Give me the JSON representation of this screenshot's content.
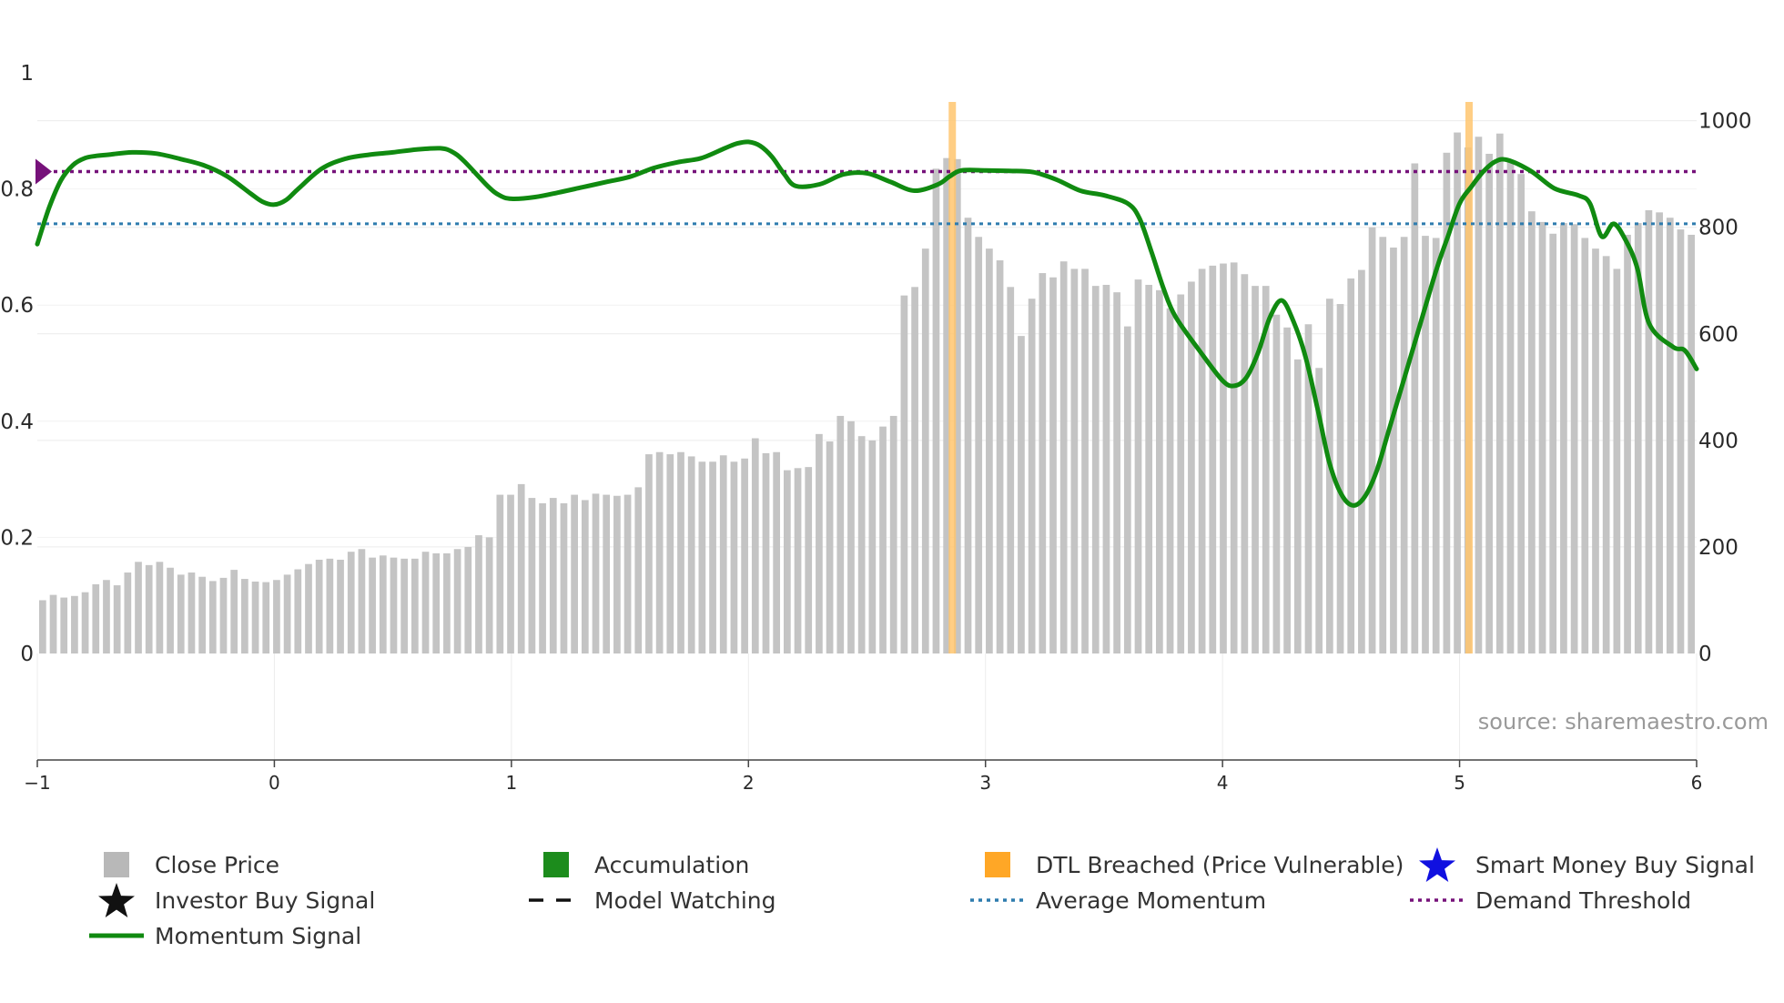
{
  "chart_data": {
    "type": "bar",
    "title": "",
    "source": "source: sharemaestro.com",
    "x_axis": {
      "range": [
        -1,
        6
      ],
      "ticks": [
        "−1",
        "0",
        "1",
        "2",
        "3",
        "4",
        "5",
        "6"
      ]
    },
    "y_left": {
      "range": [
        0,
        1
      ],
      "ticks": [
        "0",
        "0.2",
        "0.4",
        "0.6",
        "0.8",
        "1"
      ]
    },
    "y_right": {
      "range": [
        0,
        1090
      ],
      "ticks": [
        "0",
        "200",
        "400",
        "600",
        "800",
        "1000"
      ]
    },
    "close_price": [
      100,
      110,
      105,
      108,
      115,
      130,
      138,
      128,
      152,
      172,
      166,
      172,
      161,
      148,
      152,
      144,
      136,
      142,
      157,
      140,
      135,
      134,
      138,
      148,
      158,
      168,
      176,
      178,
      176,
      191,
      196,
      180,
      184,
      180,
      178,
      178,
      191,
      188,
      188,
      196,
      200,
      222,
      218,
      298,
      298,
      318,
      292,
      282,
      292,
      282,
      298,
      288,
      300,
      298,
      296,
      298,
      312,
      374,
      378,
      374,
      378,
      370,
      360,
      360,
      372,
      360,
      366,
      404,
      376,
      378,
      344,
      348,
      350,
      412,
      398,
      446,
      436,
      408,
      400,
      426,
      446,
      672,
      688,
      760,
      910,
      930,
      928,
      818,
      782,
      760,
      738,
      688,
      596,
      666,
      714,
      706,
      736,
      722,
      722,
      690,
      692,
      678,
      614,
      702,
      692,
      682,
      648,
      674,
      698,
      722,
      728,
      732,
      734,
      712,
      690,
      690,
      636,
      612,
      552,
      618,
      536,
      666,
      656,
      704,
      720,
      800,
      782,
      762,
      782,
      920,
      784,
      780,
      940,
      978,
      950,
      970,
      938,
      976,
      926,
      900,
      830,
      810,
      788,
      808,
      806,
      780,
      760,
      746,
      722,
      786,
      808,
      832,
      828,
      818,
      796,
      786
    ],
    "momentum_signal": [
      [
        -1.0,
        0.705
      ],
      [
        -0.95,
        0.768
      ],
      [
        -0.9,
        0.815
      ],
      [
        -0.85,
        0.841
      ],
      [
        -0.8,
        0.853
      ],
      [
        -0.75,
        0.857
      ],
      [
        -0.7,
        0.859
      ],
      [
        -0.6,
        0.863
      ],
      [
        -0.5,
        0.861
      ],
      [
        -0.4,
        0.852
      ],
      [
        -0.3,
        0.841
      ],
      [
        -0.2,
        0.822
      ],
      [
        -0.1,
        0.792
      ],
      [
        -0.05,
        0.778
      ],
      [
        0.0,
        0.773
      ],
      [
        0.05,
        0.781
      ],
      [
        0.1,
        0.8
      ],
      [
        0.2,
        0.835
      ],
      [
        0.3,
        0.852
      ],
      [
        0.4,
        0.859
      ],
      [
        0.5,
        0.863
      ],
      [
        0.6,
        0.868
      ],
      [
        0.7,
        0.87
      ],
      [
        0.75,
        0.864
      ],
      [
        0.8,
        0.848
      ],
      [
        0.9,
        0.805
      ],
      [
        0.95,
        0.789
      ],
      [
        1.0,
        0.783
      ],
      [
        1.1,
        0.786
      ],
      [
        1.2,
        0.794
      ],
      [
        1.3,
        0.803
      ],
      [
        1.4,
        0.812
      ],
      [
        1.5,
        0.821
      ],
      [
        1.6,
        0.836
      ],
      [
        1.7,
        0.846
      ],
      [
        1.8,
        0.853
      ],
      [
        1.9,
        0.87
      ],
      [
        1.95,
        0.878
      ],
      [
        2.0,
        0.881
      ],
      [
        2.05,
        0.874
      ],
      [
        2.1,
        0.855
      ],
      [
        2.15,
        0.826
      ],
      [
        2.2,
        0.805
      ],
      [
        2.3,
        0.808
      ],
      [
        2.4,
        0.825
      ],
      [
        2.5,
        0.827
      ],
      [
        2.6,
        0.812
      ],
      [
        2.7,
        0.797
      ],
      [
        2.8,
        0.808
      ],
      [
        2.85,
        0.822
      ],
      [
        2.9,
        0.832
      ],
      [
        3.0,
        0.832
      ],
      [
        3.1,
        0.831
      ],
      [
        3.2,
        0.829
      ],
      [
        3.3,
        0.816
      ],
      [
        3.4,
        0.797
      ],
      [
        3.5,
        0.789
      ],
      [
        3.6,
        0.775
      ],
      [
        3.65,
        0.749
      ],
      [
        3.7,
        0.692
      ],
      [
        3.75,
        0.63
      ],
      [
        3.8,
        0.581
      ],
      [
        3.9,
        0.523
      ],
      [
        4.0,
        0.47
      ],
      [
        4.05,
        0.461
      ],
      [
        4.1,
        0.475
      ],
      [
        4.15,
        0.518
      ],
      [
        4.2,
        0.579
      ],
      [
        4.25,
        0.608
      ],
      [
        4.3,
        0.571
      ],
      [
        4.35,
        0.511
      ],
      [
        4.4,
        0.423
      ],
      [
        4.45,
        0.33
      ],
      [
        4.5,
        0.275
      ],
      [
        4.55,
        0.255
      ],
      [
        4.6,
        0.27
      ],
      [
        4.65,
        0.314
      ],
      [
        4.7,
        0.382
      ],
      [
        4.8,
        0.52
      ],
      [
        4.9,
        0.658
      ],
      [
        4.95,
        0.717
      ],
      [
        5.0,
        0.775
      ],
      [
        5.05,
        0.804
      ],
      [
        5.1,
        0.83
      ],
      [
        5.15,
        0.847
      ],
      [
        5.2,
        0.85
      ],
      [
        5.3,
        0.831
      ],
      [
        5.4,
        0.801
      ],
      [
        5.5,
        0.789
      ],
      [
        5.55,
        0.775
      ],
      [
        5.6,
        0.718
      ],
      [
        5.65,
        0.74
      ],
      [
        5.7,
        0.712
      ],
      [
        5.75,
        0.663
      ],
      [
        5.8,
        0.568
      ],
      [
        5.9,
        0.528
      ],
      [
        5.95,
        0.522
      ],
      [
        6.0,
        0.49
      ]
    ],
    "average_momentum": 0.74,
    "demand_threshold": 0.83,
    "dtl_breached": [
      2.86,
      5.04
    ],
    "legend": [
      {
        "key": "close",
        "label": "Close Price",
        "color": "#b8b8b8"
      },
      {
        "key": "accum",
        "label": "Accumulation",
        "color": "#1c8c1c"
      },
      {
        "key": "dtl",
        "label": "DTL Breached (Price Vulnerable)",
        "color": "#ffa726"
      },
      {
        "key": "smart",
        "label": "Smart Money Buy Signal",
        "color": "#1010e0"
      },
      {
        "key": "investor",
        "label": "Investor Buy Signal",
        "color": "#111111"
      },
      {
        "key": "watching",
        "label": "Model Watching",
        "color": "#111111"
      },
      {
        "key": "avgmom",
        "label": "Average Momentum",
        "color": "#2e7cae"
      },
      {
        "key": "demand",
        "label": "Demand Threshold",
        "color": "#76127a"
      },
      {
        "key": "momentum",
        "label": "Momentum Signal",
        "color": "#108a10"
      }
    ],
    "colors": {
      "bars": "#c4c4c4",
      "momentum": "#108a10",
      "average_momentum": "#2e7cae",
      "demand_threshold": "#76127a",
      "dtl": "#ffc56e",
      "marker": "#76127a"
    }
  }
}
